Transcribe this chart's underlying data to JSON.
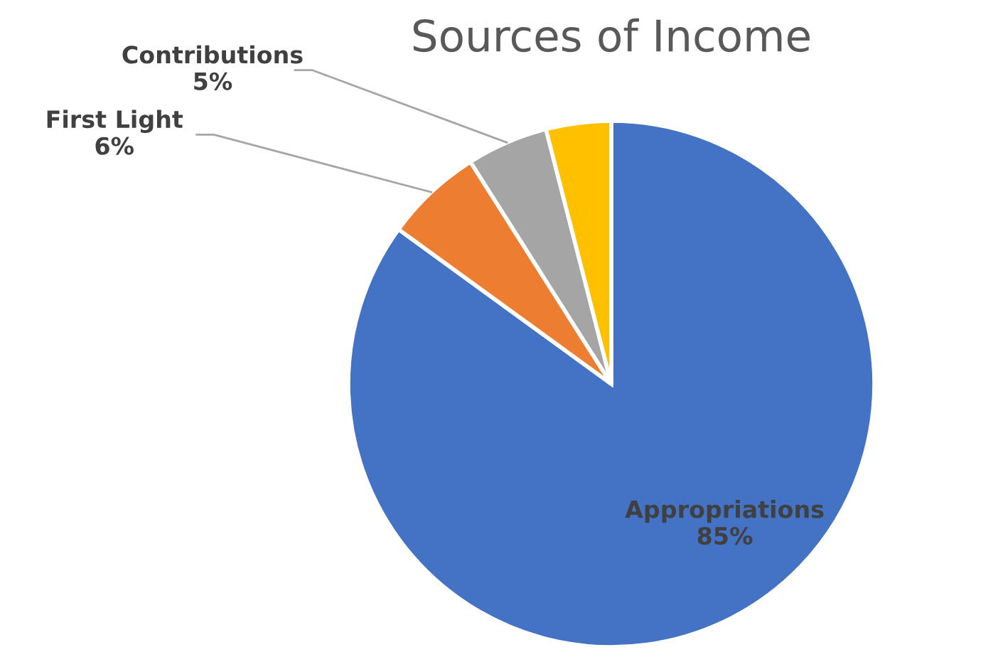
{
  "chart_data": {
    "type": "pie",
    "title": "Sources of Income",
    "categories": [
      "Appropriations",
      "First Light",
      "Contributions",
      null
    ],
    "values": [
      85,
      6,
      5,
      4
    ],
    "value_labels": [
      "85%",
      "6%",
      "5%",
      null
    ],
    "colors": [
      "#4472c4",
      "#ed7d31",
      "#a5a5a5",
      "#ffc000"
    ],
    "legend": false
  }
}
